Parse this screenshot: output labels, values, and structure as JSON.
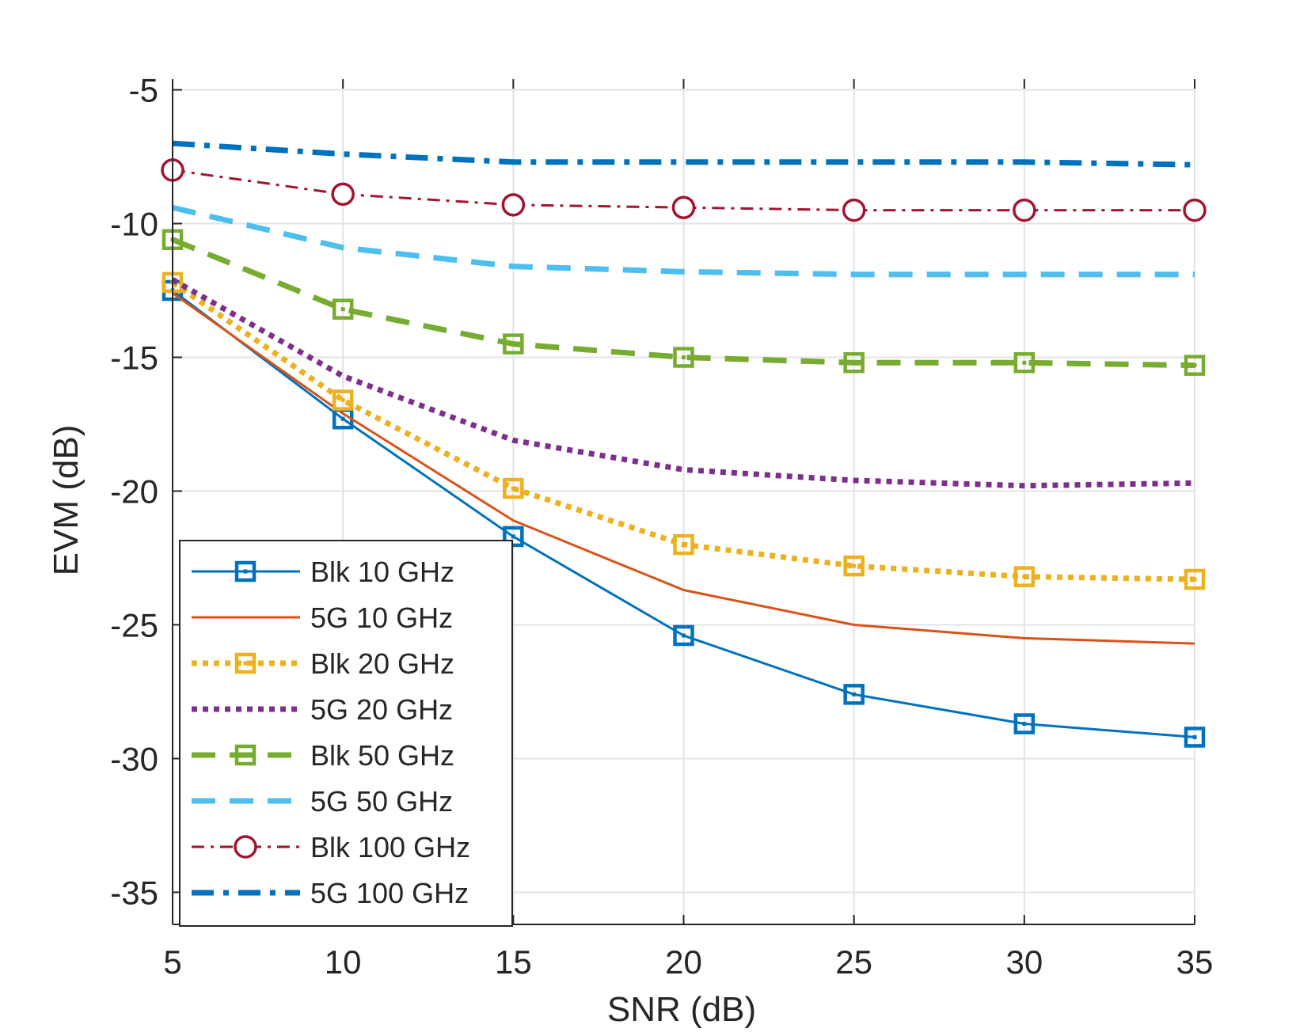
{
  "chart_data": {
    "type": "line",
    "title": "",
    "xlabel": "SNR (dB)",
    "ylabel": "EVM (dB)",
    "xlim": [
      5,
      35
    ],
    "ylim": [
      -36.2,
      -4.6
    ],
    "grid": true,
    "legend_position": "bottom-left",
    "x": [
      5,
      10,
      15,
      20,
      25,
      30,
      35
    ],
    "x_ticks": [
      5,
      10,
      15,
      20,
      25,
      30,
      35
    ],
    "x_tick_labels": [
      "5",
      "10",
      "15",
      "20",
      "25",
      "30",
      "35"
    ],
    "y_ticks": [
      -5,
      -10,
      -15,
      -20,
      -25,
      -30,
      -35
    ],
    "y_tick_labels": [
      "-5",
      "-10",
      "-15",
      "-20",
      "-25",
      "-30",
      "-35"
    ],
    "series": [
      {
        "name": "Blk 10 GHz",
        "color": "#0072bd",
        "style": "solid",
        "weight": "thin",
        "marker": "square",
        "values": [
          -12.5,
          -17.3,
          -21.7,
          -25.4,
          -27.6,
          -28.7,
          -29.2
        ]
      },
      {
        "name": "5G 10 GHz",
        "color": "#d95319",
        "style": "solid",
        "weight": "thin",
        "marker": "none",
        "values": [
          -12.6,
          -17.1,
          -21.1,
          -23.7,
          -25.0,
          -25.5,
          -25.7
        ]
      },
      {
        "name": "Blk 20 GHz",
        "color": "#edb120",
        "style": "dotted",
        "weight": "thick",
        "marker": "square",
        "values": [
          -12.2,
          -16.6,
          -19.9,
          -22.0,
          -22.8,
          -23.2,
          -23.3
        ]
      },
      {
        "name": "5G 20 GHz",
        "color": "#7e2f8e",
        "style": "dotted",
        "weight": "thick",
        "marker": "none",
        "values": [
          -12.1,
          -15.7,
          -18.1,
          -19.2,
          -19.6,
          -19.8,
          -19.7
        ]
      },
      {
        "name": "Blk 50 GHz",
        "color": "#77ac30",
        "style": "dashed",
        "weight": "thick",
        "marker": "square",
        "values": [
          -10.6,
          -13.2,
          -14.5,
          -15.0,
          -15.2,
          -15.2,
          -15.3
        ]
      },
      {
        "name": "5G 50 GHz",
        "color": "#4dbeee",
        "style": "dashed",
        "weight": "thick",
        "marker": "none",
        "values": [
          -9.4,
          -10.9,
          -11.6,
          -11.8,
          -11.9,
          -11.9,
          -11.9
        ]
      },
      {
        "name": "Blk 100 GHz",
        "color": "#a2142f",
        "style": "dashdot",
        "weight": "thin",
        "marker": "circle",
        "values": [
          -8.0,
          -8.9,
          -9.3,
          -9.4,
          -9.5,
          -9.5,
          -9.5
        ]
      },
      {
        "name": "5G 100 GHz",
        "color": "#0072bd",
        "style": "dashdot",
        "weight": "thick",
        "marker": "none",
        "values": [
          -7.0,
          -7.4,
          -7.7,
          -7.7,
          -7.7,
          -7.7,
          -7.8
        ]
      }
    ]
  }
}
